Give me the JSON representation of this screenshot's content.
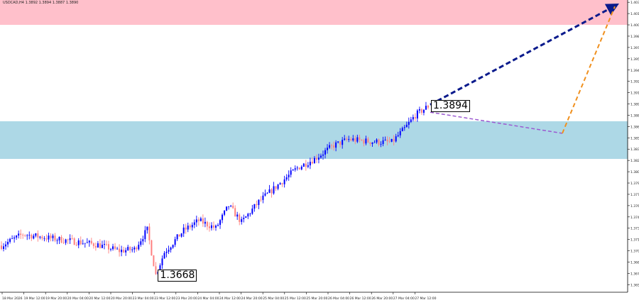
{
  "header": {
    "symbol_line": "USDCAD,H4 1.3892 1.3894 1.3887 1.3890"
  },
  "colors": {
    "resistance_zone": "#ffc0cb",
    "support_zone": "#add8e6",
    "bull_candle": "#0000ff",
    "bear_candle": "#ff8080",
    "forecast_main": "#0a1a8c",
    "forecast_alt_down": "#9b59d0",
    "forecast_alt_up": "#f0901e"
  },
  "chart_data": {
    "type": "candlestick",
    "symbol": "USDCAD",
    "timeframe": "H4",
    "ylim": [
      1.3645,
      1.4033
    ],
    "y_ticks": [
      "1.4030",
      "1.4015",
      "1.4000",
      "1.3985",
      "1.3970",
      "1.3955",
      "1.3940",
      "1.3925",
      "1.3910",
      "1.3895",
      "1.3880",
      "1.3865",
      "1.3850",
      "1.3835",
      "1.3820",
      "1.3805",
      "1.3790",
      "1.3775",
      "1.3760",
      "1.3745",
      "1.3730",
      "1.3715",
      "1.3700",
      "1.3685",
      "1.3670",
      "1.3655"
    ],
    "x_ticks": [
      "18 Mar 2026",
      "19 Mar 12:00",
      "19 Mar 20:00",
      "20 Mar 04:00",
      "20 Mar 12:00",
      "20 Mar 20:00",
      "23 Mar 04:00",
      "23 Mar 12:00",
      "23 Mar 20:00",
      "24 Mar 04:00",
      "24 Mar 12:00",
      "24 Mar 20:00",
      "25 Mar 04:00",
      "25 Mar 12:00",
      "25 Mar 20:00",
      "26 Mar 04:00",
      "26 Mar 12:00",
      "26 Mar 20:00",
      "27 Mar 04:00",
      "27 Mar 12:00"
    ],
    "candle_count": 200,
    "zones": [
      {
        "name": "resistance",
        "from": 1.4,
        "to": 1.4033
      },
      {
        "name": "support",
        "from": 1.3822,
        "to": 1.3872
      }
    ],
    "annotations": [
      {
        "text": "1.3894",
        "value": 1.3894,
        "candle_index": 199
      },
      {
        "text": "1.3668",
        "value": 1.3668,
        "candle_index": 72
      }
    ],
    "forecast_lines": [
      {
        "name": "main-up",
        "style": "dashed-arrow",
        "from_value": 1.3894,
        "to_value": 1.403
      },
      {
        "name": "alt-down",
        "style": "dashed",
        "from_value": 1.3884,
        "to_value": 1.3856
      },
      {
        "name": "alt-up",
        "style": "dashed",
        "from_value": 1.3856,
        "to_value": 1.403
      }
    ]
  }
}
